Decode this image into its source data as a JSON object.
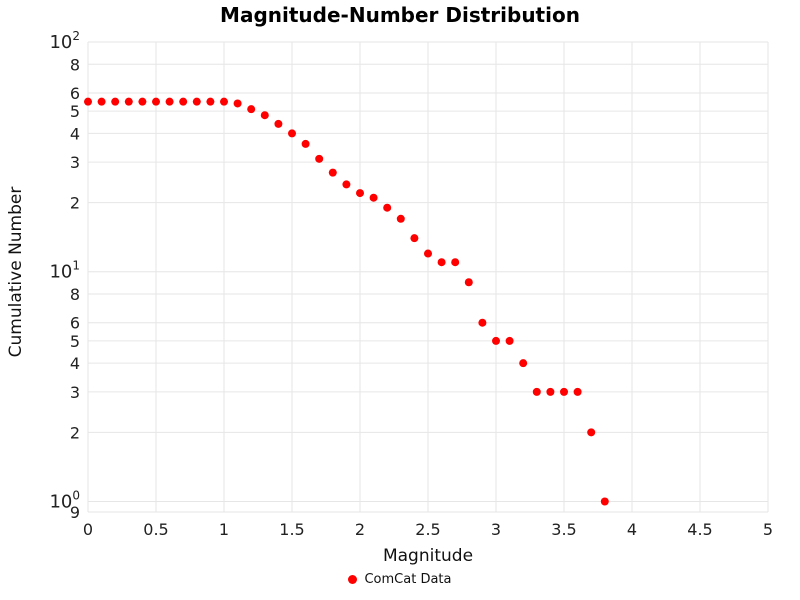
{
  "chart_data": {
    "type": "scatter",
    "title": "Magnitude-Number Distribution",
    "xlabel": "Magnitude",
    "ylabel": "Cumulative Number",
    "series_name": "ComCat Data",
    "marker_color": "#ff0000",
    "grid": true,
    "grid_color": "#e6e6e6",
    "tick_color": "#222222",
    "y_scale": "log",
    "xlim": [
      0,
      5
    ],
    "ylim": [
      0.9,
      100
    ],
    "legend_position": "bottom-center",
    "x_ticks": {
      "values": [
        0,
        0.5,
        1,
        1.5,
        2,
        2.5,
        3,
        3.5,
        4,
        4.5,
        5
      ],
      "labels": [
        "0",
        "0.5",
        "1",
        "1.5",
        "2",
        "2.5",
        "3",
        "3.5",
        "4",
        "4.5",
        "5"
      ]
    },
    "y_ticks": [
      {
        "v": 100,
        "label": "10",
        "sup": "2"
      },
      {
        "v": 80,
        "label": "8"
      },
      {
        "v": 60,
        "label": "6"
      },
      {
        "v": 50,
        "label": "5"
      },
      {
        "v": 40,
        "label": "4"
      },
      {
        "v": 30,
        "label": "3"
      },
      {
        "v": 20,
        "label": "2"
      },
      {
        "v": 10,
        "label": "10",
        "sup": "1"
      },
      {
        "v": 8,
        "label": "8"
      },
      {
        "v": 6,
        "label": "6"
      },
      {
        "v": 5,
        "label": "5"
      },
      {
        "v": 4,
        "label": "4"
      },
      {
        "v": 3,
        "label": "3"
      },
      {
        "v": 2,
        "label": "2"
      },
      {
        "v": 1,
        "label": "10",
        "sup": "0"
      },
      {
        "v": 0.9,
        "label": "9"
      }
    ],
    "x": [
      0.0,
      0.1,
      0.2,
      0.3,
      0.4,
      0.5,
      0.6,
      0.7,
      0.8,
      0.9,
      1.0,
      1.1,
      1.2,
      1.3,
      1.4,
      1.5,
      1.6,
      1.7,
      1.8,
      1.9,
      2.0,
      2.1,
      2.2,
      2.3,
      2.4,
      2.5,
      2.6,
      2.7,
      2.8,
      2.9,
      3.0,
      3.1,
      3.2,
      3.3,
      3.4,
      3.5,
      3.6,
      3.7,
      3.8
    ],
    "y": [
      55,
      55,
      55,
      55,
      55,
      55,
      55,
      55,
      55,
      55,
      55,
      54,
      51,
      48,
      44,
      40,
      36,
      31,
      27,
      24,
      22,
      21,
      19,
      17,
      14,
      12,
      11,
      11,
      9,
      6,
      5,
      5,
      4,
      3,
      3,
      3,
      3,
      2,
      1
    ]
  }
}
